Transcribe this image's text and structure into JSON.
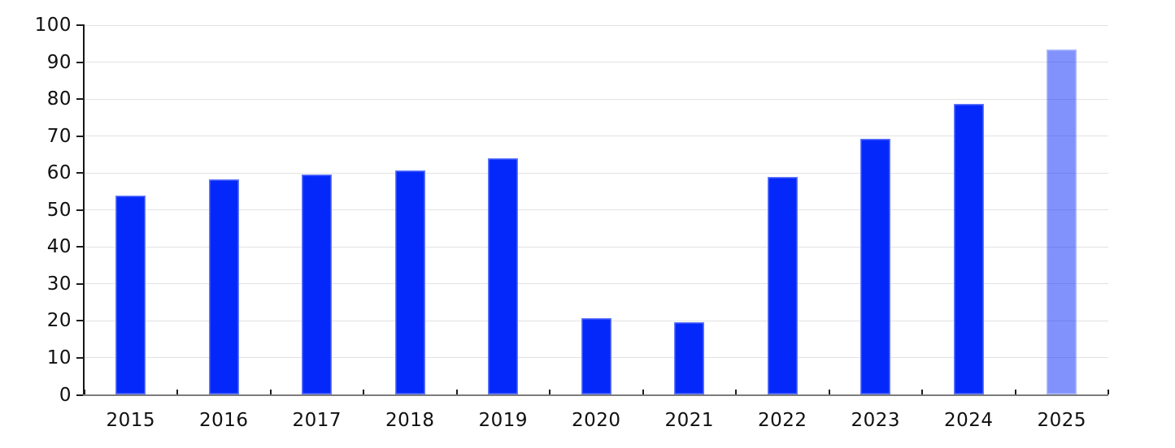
{
  "chart_data": {
    "type": "bar",
    "categories": [
      "2015",
      "2016",
      "2017",
      "2018",
      "2019",
      "2020",
      "2021",
      "2022",
      "2023",
      "2024",
      "2025"
    ],
    "values": [
      53.8,
      58.3,
      59.5,
      60.8,
      63.9,
      20.7,
      19.6,
      58.9,
      69.2,
      78.6,
      93.4
    ],
    "title": "",
    "xlabel": "",
    "ylabel": "",
    "ylim": [
      0,
      100
    ],
    "yticks": [
      0,
      10,
      20,
      30,
      40,
      50,
      60,
      70,
      80,
      90,
      100
    ],
    "grid": true,
    "legend": false,
    "bar_color": "#0528fa",
    "highlight": {
      "index": 10,
      "category": "2025",
      "opacity": 0.5,
      "rendered_color": "#8294fc"
    },
    "gridline_color": "#e2e2e2",
    "y_axis_color": "#161616",
    "x_axis_color": "#7d7d7d",
    "tick_color": "#1c1c1c",
    "label_color": "#101010",
    "background": "#ffffff"
  }
}
